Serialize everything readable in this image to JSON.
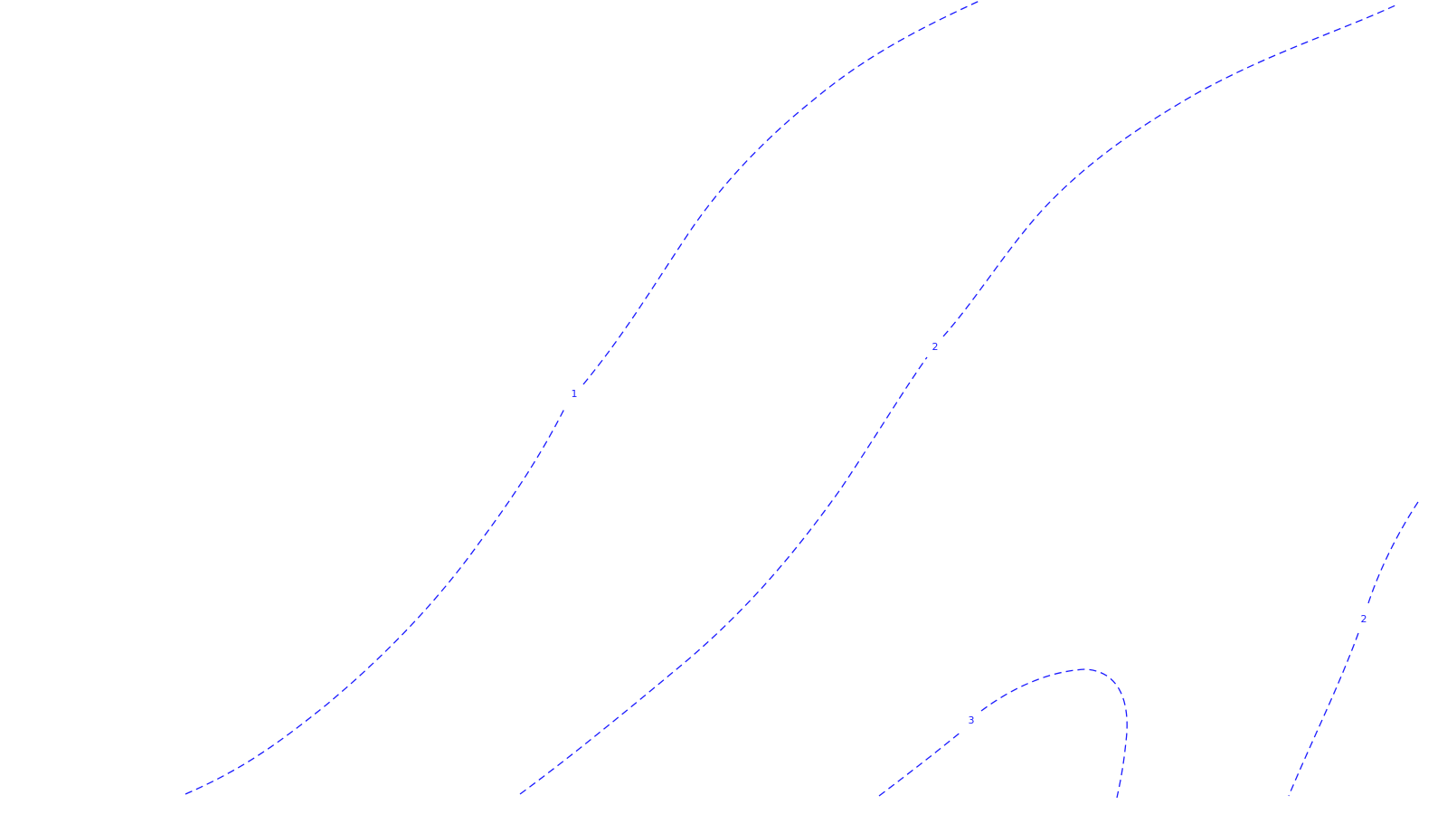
{
  "map": {
    "background_color": "#ffffff",
    "line_color": "#1a1aff",
    "label_color": "#1a1aff",
    "line_style": "dashed"
  },
  "contours": [
    {
      "level": 1,
      "label": "1"
    },
    {
      "level": 2,
      "label": "2"
    },
    {
      "level": 3,
      "label": "3"
    },
    {
      "level": 2,
      "label": "2"
    }
  ]
}
